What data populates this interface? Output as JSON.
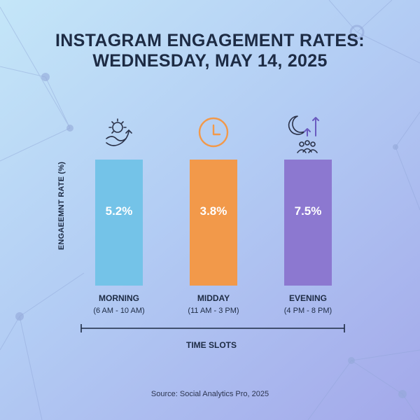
{
  "title_line1": "INSTAGRAM ENGAGEMENT RATES:",
  "title_line2": "WEDNESDAY, MAY 14, 2025",
  "source": "Source: Social Analytics Pro, 2025",
  "chart_data": {
    "type": "bar",
    "title": "INSTAGRAM ENGAGEMENT RATES: WEDNESDAY, MAY 14, 2025",
    "xlabel": "TIME SLOTS",
    "ylabel": "ENGAEEMNT RATE (%)",
    "categories": [
      "MORNING",
      "MIDDAY",
      "EVENING"
    ],
    "subcategories": [
      "(6 AM - 10 AM)",
      "(11 AM - 3 PM)",
      "(4 PM - 8 PM)"
    ],
    "values": [
      5.2,
      3.8,
      7.5
    ],
    "value_labels": [
      "5.2%",
      "3.8%",
      "7.5%"
    ],
    "icons": [
      "sunrise-icon",
      "clock-icon",
      "moon-growth-audience-icon"
    ],
    "colors": [
      "#74c3e8",
      "#f2994a",
      "#8c78d0"
    ],
    "grid": false
  }
}
